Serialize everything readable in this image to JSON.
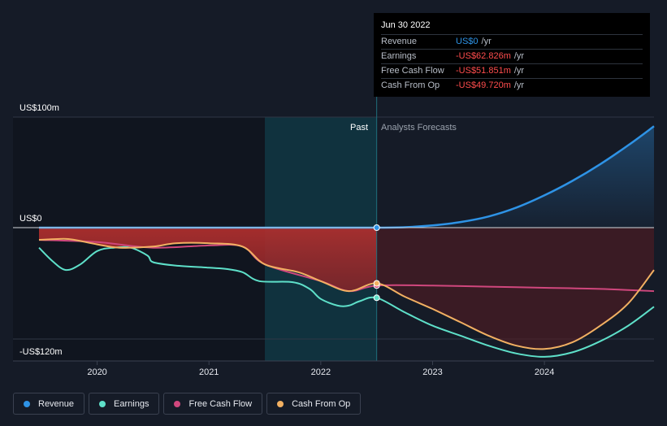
{
  "tooltip": {
    "date": "Jun 30 2022",
    "rows": [
      {
        "label": "Revenue",
        "value": "US$0",
        "unit": "/yr",
        "color": "#2e93e6"
      },
      {
        "label": "Earnings",
        "value": "-US$62.826m",
        "unit": "/yr",
        "color": "#ff4d4d"
      },
      {
        "label": "Free Cash Flow",
        "value": "-US$51.851m",
        "unit": "/yr",
        "color": "#ff4d4d"
      },
      {
        "label": "Cash From Op",
        "value": "-US$49.720m",
        "unit": "/yr",
        "color": "#ff4d4d"
      }
    ]
  },
  "legend": [
    {
      "label": "Revenue",
      "color": "#2e93e6"
    },
    {
      "label": "Earnings",
      "color": "#5ee0c9"
    },
    {
      "label": "Free Cash Flow",
      "color": "#d0477d"
    },
    {
      "label": "Cash From Op",
      "color": "#f2b062"
    }
  ],
  "chart_data": {
    "type": "line",
    "y_labels": {
      "top": "US$100m",
      "zero": "US$0",
      "bottom": "-US$120m"
    },
    "ylim": [
      -120,
      100
    ],
    "xlim": [
      2019.48,
      2024.98
    ],
    "x_ticks": [
      2020,
      2021,
      2022,
      2023,
      2024
    ],
    "x_tick_labels": [
      "2020",
      "2021",
      "2022",
      "2023",
      "2024"
    ],
    "divider_x": 2022.5,
    "past_label": "Past",
    "forecast_label": "Analysts Forecasts",
    "highlight_range": [
      2021.5,
      2022.5
    ],
    "series": [
      {
        "name": "Revenue",
        "color": "#2e93e6",
        "x": [
          2019.48,
          2020,
          2020.5,
          2021,
          2021.5,
          2022,
          2022.5,
          2022.75,
          2023,
          2023.25,
          2023.5,
          2023.75,
          2024,
          2024.25,
          2024.5,
          2024.75,
          2024.98
        ],
        "y": [
          0,
          0,
          0,
          0,
          0,
          0,
          0,
          0.4,
          2,
          5,
          10,
          18,
          29,
          42,
          57,
          74,
          91
        ]
      },
      {
        "name": "Earnings",
        "color": "#5ee0c9",
        "x": [
          2019.48,
          2019.6,
          2019.72,
          2019.85,
          2020,
          2020.15,
          2020.3,
          2020.45,
          2020.5,
          2020.7,
          2021,
          2021.15,
          2021.3,
          2021.45,
          2021.75,
          2021.9,
          2022,
          2022.15,
          2022.25,
          2022.35,
          2022.5,
          2022.75,
          2023,
          2023.25,
          2023.5,
          2023.75,
          2024,
          2024.25,
          2024.5,
          2024.75,
          2024.98
        ],
        "y": [
          -18,
          -30,
          -38,
          -33,
          -21,
          -18,
          -18,
          -25,
          -31,
          -34,
          -36,
          -37,
          -40,
          -48,
          -49,
          -55,
          -64,
          -70,
          -70,
          -66,
          -63,
          -76,
          -88,
          -97,
          -106,
          -113,
          -116,
          -112,
          -102,
          -88,
          -71
        ]
      },
      {
        "name": "Free Cash Flow",
        "color": "#d0477d",
        "x": [
          2019.48,
          2020,
          2020.5,
          2021,
          2021.3,
          2021.5,
          2022,
          2022.25,
          2022.5,
          2023,
          2023.5,
          2024,
          2024.5,
          2024.98
        ],
        "y": [
          -11,
          -13,
          -18,
          -16,
          -17,
          -33,
          -48,
          -57,
          -52,
          -52,
          -53,
          -54,
          -55,
          -57
        ]
      },
      {
        "name": "Cash From Op",
        "color": "#f2b062",
        "x": [
          2019.48,
          2019.7,
          2019.8,
          2020,
          2020.2,
          2020.5,
          2020.7,
          2021,
          2021.3,
          2021.5,
          2021.8,
          2022,
          2022.25,
          2022.5,
          2022.75,
          2023,
          2023.25,
          2023.5,
          2023.75,
          2024,
          2024.25,
          2024.5,
          2024.75,
          2024.98
        ],
        "y": [
          -11,
          -10,
          -11,
          -15,
          -18,
          -17,
          -14,
          -14,
          -17,
          -33,
          -40,
          -48,
          -57,
          -50,
          -62,
          -73,
          -85,
          -97,
          -106,
          -109,
          -103,
          -88,
          -68,
          -38
        ]
      }
    ]
  }
}
